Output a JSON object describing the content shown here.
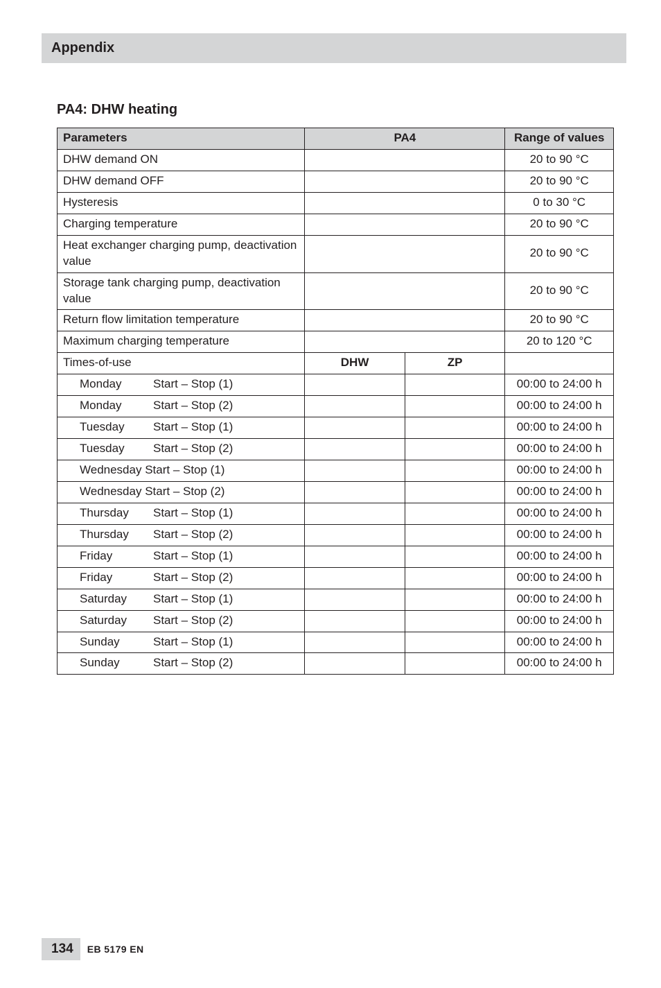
{
  "header": {
    "title": "Appendix"
  },
  "section": {
    "title": "PA4: DHW heating"
  },
  "table": {
    "head": {
      "parameters": "Parameters",
      "pa4": "PA4",
      "range": "Range of values"
    },
    "sub": {
      "dhw": "DHW",
      "zp": "ZP"
    },
    "rows_top": [
      {
        "param": "DHW demand ON",
        "range": "20 to 90 °C"
      },
      {
        "param": "DHW demand OFF",
        "range": "20 to 90 °C"
      },
      {
        "param": "Hysteresis",
        "range": "0 to 30 °C"
      },
      {
        "param": "Charging temperature",
        "range": "20 to 90 °C"
      },
      {
        "param": "Heat exchanger charging pump, deactivation value",
        "range": "20 to 90 °C"
      },
      {
        "param": "Storage tank charging pump, deactivation value",
        "range": "20 to 90 °C"
      },
      {
        "param": "Return flow limitation temperature",
        "range": "20 to 90 °C"
      },
      {
        "param": "Maximum charging temperature",
        "range": "20 to 120 °C"
      }
    ],
    "times_label": "Times-of-use",
    "schedule": [
      {
        "day": "Monday",
        "slot": "Start – Stop (1)",
        "range": "00:00 to 24:00 h"
      },
      {
        "day": "Monday",
        "slot": "Start – Stop (2)",
        "range": "00:00 to 24:00 h"
      },
      {
        "day": "Tuesday",
        "slot": "Start – Stop (1)",
        "range": "00:00 to 24:00 h"
      },
      {
        "day": "Tuesday",
        "slot": "Start – Stop (2)",
        "range": "00:00 to 24:00 h"
      },
      {
        "day": "Wednesday",
        "slot": "Start – Stop (1)",
        "range": "00:00 to 24:00 h",
        "nogap": true
      },
      {
        "day": "Wednesday",
        "slot": "Start – Stop (2)",
        "range": "00:00 to 24:00 h",
        "nogap": true
      },
      {
        "day": "Thursday",
        "slot": "Start – Stop (1)",
        "range": "00:00 to 24:00 h"
      },
      {
        "day": "Thursday",
        "slot": "Start – Stop (2)",
        "range": "00:00 to 24:00 h"
      },
      {
        "day": "Friday",
        "slot": "Start – Stop (1)",
        "range": "00:00 to 24:00 h"
      },
      {
        "day": "Friday",
        "slot": "Start – Stop (2)",
        "range": "00:00 to 24:00 h"
      },
      {
        "day": "Saturday",
        "slot": "Start – Stop (1)",
        "range": "00:00 to 24:00 h"
      },
      {
        "day": "Saturday",
        "slot": "Start – Stop (2)",
        "range": "00:00 to 24:00 h"
      },
      {
        "day": "Sunday",
        "slot": "Start – Stop (1)",
        "range": "00:00 to 24:00 h"
      },
      {
        "day": "Sunday",
        "slot": "Start – Stop (2)",
        "range": "00:00 to 24:00 h"
      }
    ]
  },
  "footer": {
    "page": "134",
    "code": "EB 5179 EN"
  }
}
